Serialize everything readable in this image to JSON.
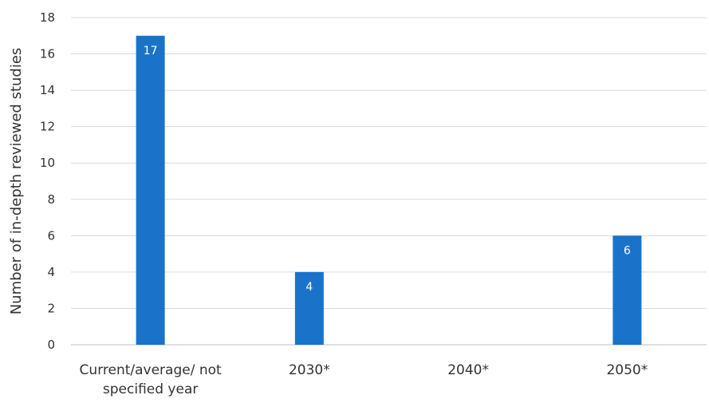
{
  "chart_data": {
    "type": "bar",
    "title": "",
    "xlabel": "",
    "ylabel": "Number of in-depth reviewed studies",
    "ylim": [
      0,
      18
    ],
    "yticks": [
      0,
      2,
      4,
      6,
      8,
      10,
      12,
      14,
      16,
      18
    ],
    "grid": true,
    "legend": "none",
    "bar_color": "#1a73c9",
    "categories": [
      [
        "Current/average/ not",
        "specified year"
      ],
      [
        "2030*"
      ],
      [
        "2040*"
      ],
      [
        "2050*"
      ]
    ],
    "values": [
      17,
      4,
      0,
      6
    ],
    "data_labels": [
      "17",
      "4",
      "",
      "6"
    ]
  }
}
